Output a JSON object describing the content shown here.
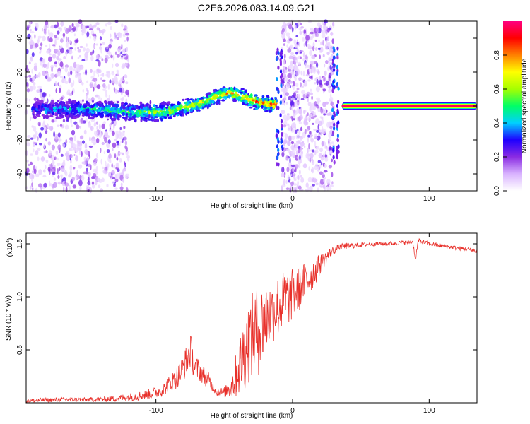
{
  "title": "C2E6.2026.083.14.09.G21",
  "chart_data": [
    {
      "type": "heatmap",
      "name": "spectrogram",
      "xlabel": "Height of straight line (km)",
      "ylabel": "Frequency (Hz)",
      "xlim": [
        -195,
        135
      ],
      "ylim": [
        -50,
        50
      ],
      "xticks": [
        -100,
        0,
        100
      ],
      "yticks": [
        -40,
        -20,
        0,
        20,
        40
      ],
      "colorbar": {
        "label": "Normalized spectral amplitude",
        "range": [
          0,
          1
        ],
        "ticks": [
          "0.0",
          "0.2",
          "0.4",
          "0.6",
          "0.8"
        ],
        "tick_values": [
          0.0,
          0.2,
          0.4,
          0.6,
          0.8
        ],
        "colors": [
          "#ffffff",
          "#d9b3ff",
          "#8a2be2",
          "#1e00ff",
          "#00d0ff",
          "#00ff66",
          "#a6ff00",
          "#ffff00",
          "#ff8000",
          "#ff0000",
          "#ff0080"
        ]
      },
      "ridge": {
        "x": [
          -190,
          -170,
          -150,
          -130,
          -110,
          -90,
          -70,
          -55,
          -45,
          -35,
          -25,
          -15,
          -12
        ],
        "y": [
          -2,
          -2,
          -2,
          -3,
          -4,
          -3,
          1,
          6,
          8,
          5,
          2,
          1,
          1
        ]
      },
      "noisy_regions": [
        [
          -195,
          -120
        ],
        [
          -8,
          30
        ]
      ],
      "tone": {
        "x_start": 36,
        "x_end": 135,
        "freq": 0
      },
      "spikes": [
        -11,
        -8,
        30,
        33
      ]
    },
    {
      "type": "line",
      "name": "snr",
      "xlabel": "Height of straight line (km)",
      "ylabel": "SNR (10 * v/v)",
      "multiplier": "(x10",
      "multiplier_exp": "4",
      "multiplier_close": ")",
      "xlim": [
        -195,
        135
      ],
      "ylim": [
        0,
        1.6
      ],
      "xticks": [
        -100,
        0,
        100
      ],
      "yticks": [
        0.5,
        1.0,
        1.5
      ],
      "ytick_labels": [
        "0.5",
        "1.0",
        "1.5"
      ],
      "series": [
        {
          "name": "SNR",
          "color": "#e8302a",
          "x": [
            -195,
            -170,
            -150,
            -130,
            -115,
            -105,
            -95,
            -88,
            -82,
            -77,
            -75,
            -72,
            -68,
            -62,
            -58,
            -55,
            -50,
            -45,
            -40,
            -36,
            -32,
            -28,
            -25,
            -23,
            -20,
            -15,
            -10,
            -5,
            0,
            5,
            10,
            15,
            20,
            25,
            30,
            35,
            40,
            50,
            60,
            70,
            80,
            88,
            90,
            92,
            100,
            110,
            120,
            128,
            135
          ],
          "y": [
            0.02,
            0.03,
            0.03,
            0.04,
            0.06,
            0.08,
            0.12,
            0.2,
            0.28,
            0.42,
            0.5,
            0.35,
            0.3,
            0.22,
            0.15,
            0.1,
            0.1,
            0.15,
            0.3,
            0.45,
            0.58,
            0.65,
            0.7,
            0.72,
            0.8,
            0.85,
            0.92,
            0.98,
            1.02,
            1.08,
            1.15,
            1.22,
            1.3,
            1.38,
            1.44,
            1.47,
            1.48,
            1.49,
            1.5,
            1.5,
            1.51,
            1.52,
            1.35,
            1.53,
            1.5,
            1.48,
            1.46,
            1.45,
            1.43
          ],
          "noise_amplitude": [
            0.02,
            0.02,
            0.02,
            0.03,
            0.04,
            0.05,
            0.06,
            0.09,
            0.12,
            0.15,
            0.18,
            0.12,
            0.1,
            0.08,
            0.05,
            0.04,
            0.05,
            0.12,
            0.25,
            0.35,
            0.4,
            0.42,
            0.45,
            0.4,
            0.35,
            0.3,
            0.3,
            0.28,
            0.25,
            0.22,
            0.18,
            0.15,
            0.1,
            0.06,
            0.04,
            0.03,
            0.03,
            0.02,
            0.02,
            0.02,
            0.02,
            0.02,
            0.02,
            0.02,
            0.02,
            0.02,
            0.02,
            0.02,
            0.02
          ]
        }
      ]
    }
  ]
}
